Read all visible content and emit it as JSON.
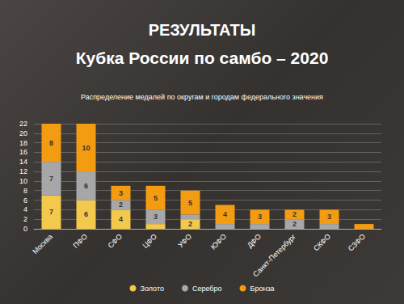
{
  "chart_data": {
    "type": "bar",
    "title": "РЕЗУЛЬТАТЫ",
    "subtitle": "Кубка России по самбо – 2020",
    "annotations": [
      "Распределение медалей по округам и городам федерального значения"
    ],
    "categories": [
      "Москва",
      "ПФО",
      "СФО",
      "ЦФО",
      "УФО",
      "ЮФО",
      "ДФО",
      "Санкт-Петербург",
      "СКФО",
      "СЗФО"
    ],
    "series": [
      {
        "name": "Золото",
        "color": "#f2c94c",
        "values": [
          7,
          6,
          4,
          1,
          2,
          0,
          0,
          0,
          0,
          0
        ],
        "value_labels": [
          "7",
          "6",
          "4",
          null,
          "2",
          null,
          null,
          null,
          null,
          null
        ]
      },
      {
        "name": "Серебро",
        "color": "#a7a7a9",
        "values": [
          7,
          6,
          2,
          3,
          1,
          1,
          1,
          2,
          1,
          0
        ],
        "value_labels": [
          "7",
          "6",
          "2",
          "3",
          null,
          null,
          null,
          "2",
          null,
          null
        ]
      },
      {
        "name": "Бронза",
        "color": "#f39c12",
        "values": [
          8,
          10,
          3,
          5,
          5,
          4,
          3,
          2,
          3,
          1
        ],
        "value_labels": [
          "8",
          "10",
          "3",
          "5",
          "5",
          "4",
          "3",
          "2",
          "3",
          null
        ]
      }
    ],
    "ylim": [
      0,
      22
    ],
    "yticks": [
      0,
      2,
      4,
      6,
      8,
      10,
      12,
      14,
      16,
      18,
      20,
      22
    ],
    "stacked": true,
    "grid": true,
    "legend": "bottom",
    "data_labels": true
  }
}
